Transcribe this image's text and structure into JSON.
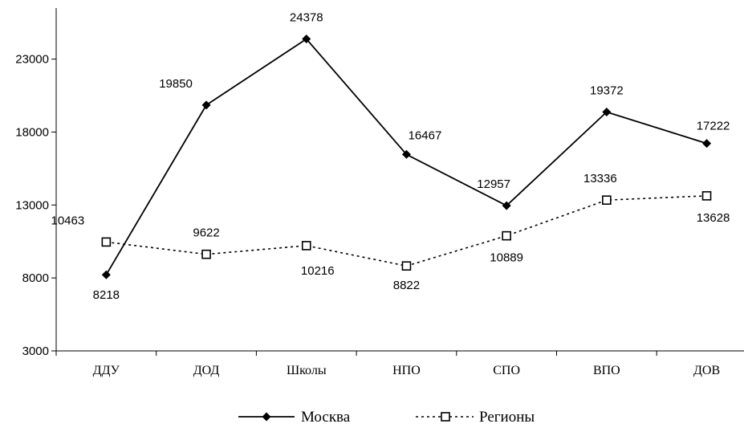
{
  "chart_data": {
    "type": "line",
    "categories": [
      "ДДУ",
      "ДОД",
      "Школы",
      "НПО",
      "СПО",
      "ВПО",
      "ДОВ"
    ],
    "y_ticks": [
      "3000",
      "8000",
      "13000",
      "18000",
      "23000"
    ],
    "ylim": [
      3000,
      26500
    ],
    "grid": false,
    "legend_position": "bottom",
    "series": [
      {
        "name": "Москва",
        "values": [
          8218,
          19850,
          24378,
          16467,
          12957,
          19372,
          17222
        ],
        "labels": [
          "8218",
          "19850",
          "24378",
          "16467",
          "12957",
          "19372",
          "17222"
        ],
        "line_style": "solid",
        "marker": "filled-diamond",
        "color": "#000000"
      },
      {
        "name": "Регионы",
        "values": [
          10463,
          9622,
          10216,
          8822,
          10889,
          13336,
          13628
        ],
        "labels": [
          "10463",
          "9622",
          "10216",
          "8822",
          "10889",
          "13336",
          "13628"
        ],
        "line_style": "dashed",
        "marker": "open-square",
        "color": "#000000"
      }
    ]
  }
}
